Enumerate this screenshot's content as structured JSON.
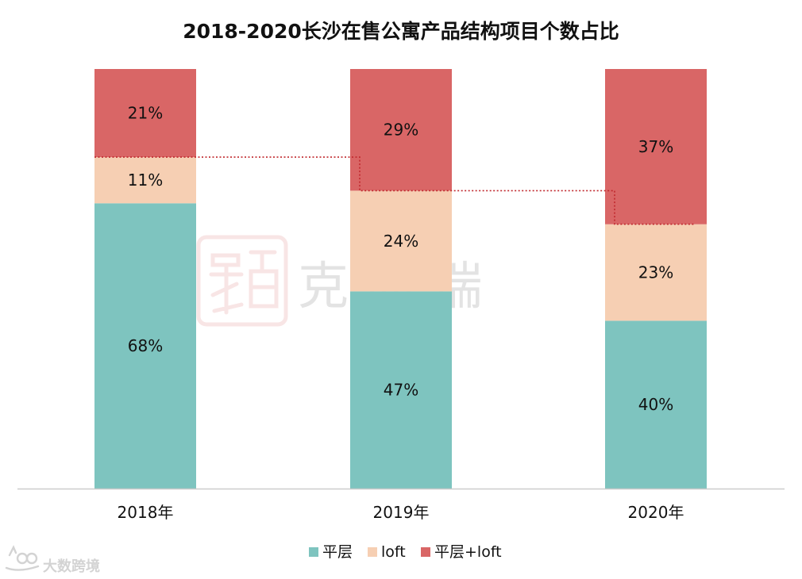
{
  "chart_data": {
    "type": "bar",
    "stacked": true,
    "title": "2018-2020长沙在售公寓产品结构项目个数占比",
    "categories": [
      "2018年",
      "2019年",
      "2020年"
    ],
    "series": [
      {
        "name": "平层",
        "values": [
          68,
          47,
          40
        ],
        "labels": [
          "68%",
          "47%",
          "40%"
        ],
        "color": "#7ec4bf"
      },
      {
        "name": "loft",
        "values": [
          11,
          24,
          23
        ],
        "labels": [
          "11%",
          "24%",
          "23%"
        ],
        "color": "#f6cfb3"
      },
      {
        "name": "平层+loft",
        "values": [
          21,
          29,
          37
        ],
        "labels": [
          "21%",
          "29%",
          "37%"
        ],
        "color": "#d96666"
      }
    ],
    "ylim": [
      0,
      100
    ],
    "grid": false,
    "legend": "bottom",
    "trend_line_color": "#c0282d"
  },
  "watermarks": {
    "center": "克 而 瑞",
    "bottom_left": "大数跨境"
  }
}
